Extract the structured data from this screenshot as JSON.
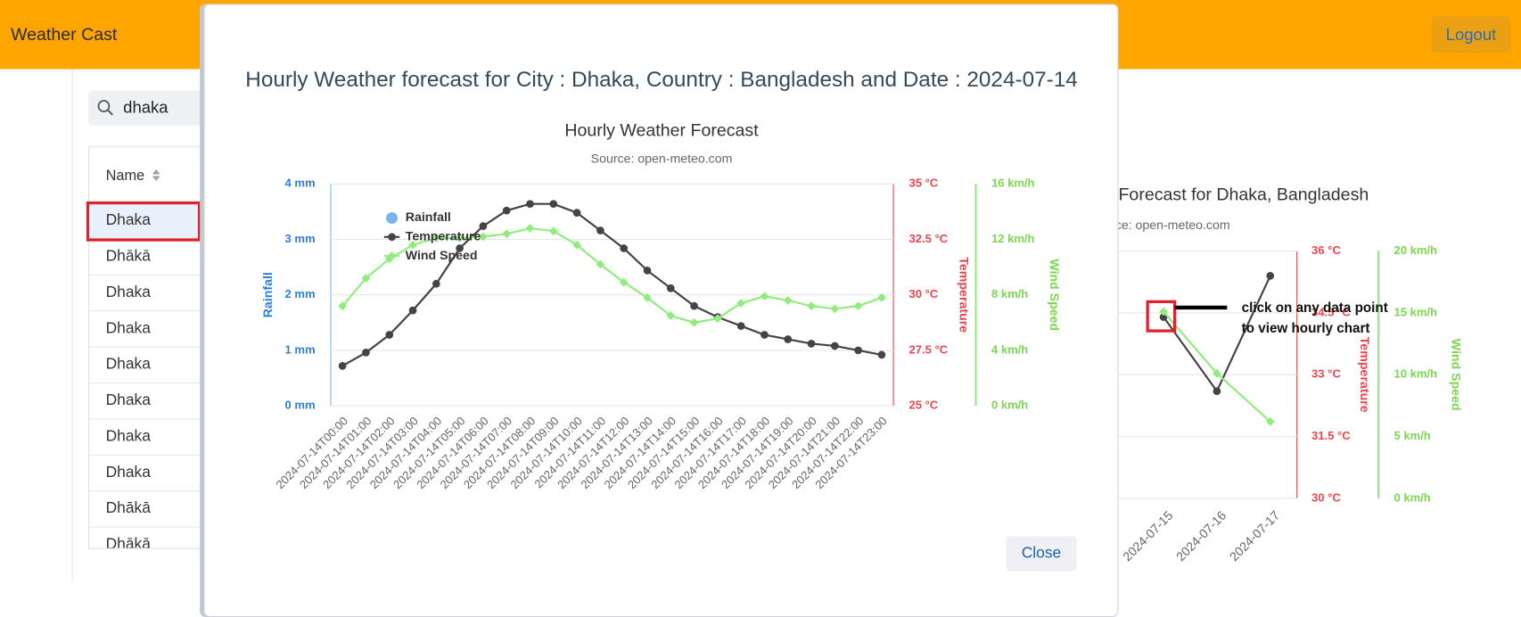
{
  "navbar": {
    "brand": "Weather Cast",
    "logout": "Logout"
  },
  "search": {
    "query": "dhaka"
  },
  "table": {
    "header": "Name",
    "rows": [
      "Dhaka",
      "Dhākā",
      "Dhaka",
      "Dhaka",
      "Dhaka",
      "Dhaka",
      "Dhaka",
      "Dhaka",
      "Dhākā",
      "Dhākā"
    ]
  },
  "modal": {
    "title": "Hourly Weather forecast for City : Dhaka, Country : Bangladesh and Date : 2024-07-14",
    "close": "Close"
  },
  "annotation": [
    "click on any data point",
    "to view hourly chart"
  ],
  "chart_data": [
    {
      "type": "line",
      "title": "Hourly Weather Forecast",
      "subtitle": "Source: open-meteo.com",
      "categories": [
        "2024-07-14T00:00",
        "2024-07-14T01:00",
        "2024-07-14T02:00",
        "2024-07-14T03:00",
        "2024-07-14T04:00",
        "2024-07-14T05:00",
        "2024-07-14T06:00",
        "2024-07-14T07:00",
        "2024-07-14T08:00",
        "2024-07-14T09:00",
        "2024-07-14T10:00",
        "2024-07-14T11:00",
        "2024-07-14T12:00",
        "2024-07-14T13:00",
        "2024-07-14T14:00",
        "2024-07-14T15:00",
        "2024-07-14T16:00",
        "2024-07-14T17:00",
        "2024-07-14T18:00",
        "2024-07-14T19:00",
        "2024-07-14T20:00",
        "2024-07-14T21:00",
        "2024-07-14T22:00",
        "2024-07-14T23:00"
      ],
      "series": [
        {
          "name": "Rainfall",
          "type": "column",
          "axis": "y",
          "color": "#7cb5ec",
          "values": [
            0,
            0,
            0,
            0,
            0,
            0,
            0,
            0,
            0,
            0,
            0,
            0,
            0,
            0,
            0,
            0,
            0,
            0,
            0,
            0,
            0,
            0,
            0,
            0
          ]
        },
        {
          "name": "Temperature",
          "type": "line",
          "axis": "y2",
          "color": "#434348",
          "marker": "circle",
          "values": [
            26.8,
            27.4,
            28.2,
            29.3,
            30.5,
            32.1,
            33.1,
            33.8,
            34.1,
            34.1,
            33.7,
            32.9,
            32.1,
            31.1,
            30.3,
            29.5,
            29.0,
            28.6,
            28.2,
            28.0,
            27.8,
            27.7,
            27.5,
            27.3
          ]
        },
        {
          "name": "Wind Speed",
          "type": "line",
          "axis": "y3",
          "color": "#90ed7d",
          "marker": "diamond",
          "values": [
            7.2,
            9.2,
            10.6,
            11.6,
            12.1,
            12.1,
            12.2,
            12.4,
            12.8,
            12.6,
            11.6,
            10.2,
            8.9,
            7.8,
            6.5,
            6.0,
            6.3,
            7.4,
            7.9,
            7.6,
            7.2,
            7.0,
            7.2,
            7.8
          ]
        }
      ],
      "ylabel": "Rainfall",
      "ylim": [
        0,
        4
      ],
      "yticks": [
        {
          "value": 0,
          "label": "0 mm"
        },
        {
          "value": 1,
          "label": "1 mm"
        },
        {
          "value": 2,
          "label": "2 mm"
        },
        {
          "value": 3,
          "label": "3 mm"
        },
        {
          "value": 4,
          "label": "4 mm"
        }
      ],
      "y2label": "Temperature",
      "y2lim": [
        25,
        35
      ],
      "y2ticks": [
        {
          "value": 25,
          "label": "25 °C"
        },
        {
          "value": 27.5,
          "label": "27.5 °C"
        },
        {
          "value": 30,
          "label": "30 °C"
        },
        {
          "value": 32.5,
          "label": "32.5 °C"
        },
        {
          "value": 35,
          "label": "35 °C"
        }
      ],
      "y3label": "Wind Speed",
      "y3lim": [
        0,
        16
      ],
      "y3ticks": [
        {
          "value": 0,
          "label": "0 km/h"
        },
        {
          "value": 4,
          "label": "4 km/h"
        },
        {
          "value": 8,
          "label": "8 km/h"
        },
        {
          "value": 12,
          "label": "12 km/h"
        },
        {
          "value": 16,
          "label": "16 km/h"
        }
      ],
      "grid": true,
      "legend": "top-left"
    },
    {
      "type": "line",
      "title": "Forecast for Dhaka, Bangladesh",
      "subtitle": "Source: open-meteo.com",
      "categories": [
        "2024-07-15",
        "2024-07-16",
        "2024-07-17"
      ],
      "series": [
        {
          "name": "Temperature",
          "type": "line",
          "axis": "y",
          "color": "#434348",
          "marker": "circle",
          "values": [
            34.4,
            32.6,
            35.4
          ]
        },
        {
          "name": "Wind Speed",
          "type": "line",
          "axis": "y2",
          "color": "#90ed7d",
          "marker": "diamond",
          "values": [
            15.1,
            10.1,
            6.2
          ]
        }
      ],
      "ylabel": "Temperature",
      "ylim": [
        30,
        36
      ],
      "yticks": [
        {
          "value": 30,
          "label": "30 °C"
        },
        {
          "value": 31.5,
          "label": "31.5 °C"
        },
        {
          "value": 33,
          "label": "33 °C"
        },
        {
          "value": 34.5,
          "label": "34.5 °C"
        },
        {
          "value": 36,
          "label": "36 °C"
        }
      ],
      "y2label": "Wind Speed",
      "y2lim": [
        0,
        20
      ],
      "y2ticks": [
        {
          "value": 0,
          "label": "0 km/h"
        },
        {
          "value": 5,
          "label": "5 km/h"
        },
        {
          "value": 10,
          "label": "10 km/h"
        },
        {
          "value": 15,
          "label": "15 km/h"
        },
        {
          "value": 20,
          "label": "20 km/h"
        }
      ],
      "grid": true
    }
  ]
}
